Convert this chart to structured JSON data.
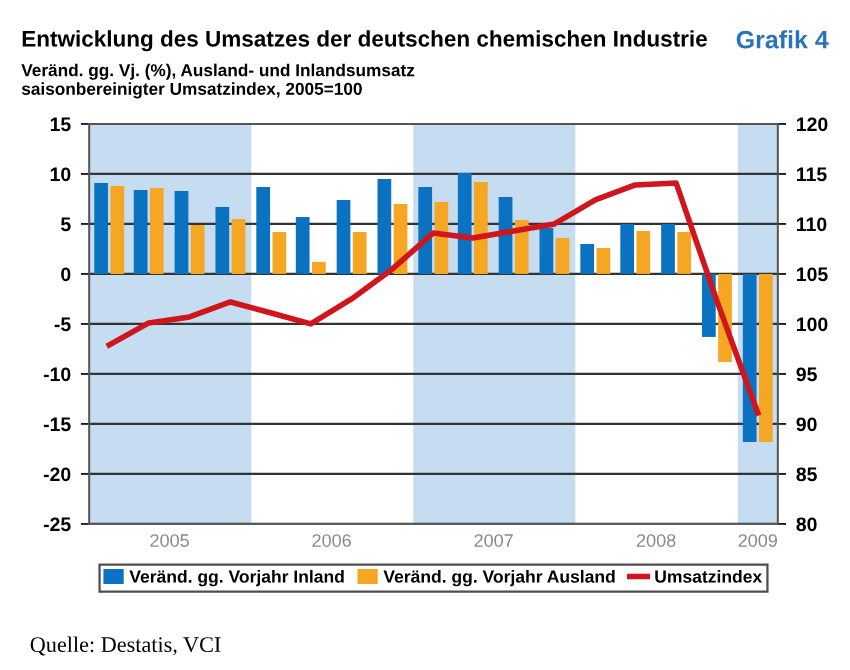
{
  "chart_data": {
    "type": "bar",
    "title": "Entwicklung des Umsatzes der deutschen chemischen Industrie",
    "subtitle": "Veränd. gg. Vj. (%), Ausland- und Inlandsumsatz\nsaisonbereinigter Umsatzindex, 2005=100",
    "annotations": [
      "Grafik 4",
      "Quelle: Destatis, VCI"
    ],
    "x": [
      "2005-02-15",
      "2005-05-15",
      "2005-08-15",
      "2005-11-15",
      "2006-02-15",
      "2006-05-15",
      "2006-08-15",
      "2006-11-15",
      "2007-02-15",
      "2007-05-15",
      "2007-08-15",
      "2007-11-15",
      "2008-02-15",
      "2008-05-15",
      "2008-08-15",
      "2008-11-15",
      "2009-02-15"
    ],
    "xlim": [
      "2005-01-01",
      "2009-04-01"
    ],
    "xticks": [
      {
        "value": "2005-07-01",
        "label": "2005"
      },
      {
        "value": "2006-07-01",
        "label": "2006"
      },
      {
        "value": "2007-07-01",
        "label": "2007"
      },
      {
        "value": "2008-07-01",
        "label": "2008"
      },
      {
        "value": "2009-02-15",
        "label": "2009"
      }
    ],
    "ylim": [
      -25,
      15
    ],
    "yticks": [
      -25,
      -20,
      -15,
      -10,
      -5,
      0,
      5,
      10,
      15
    ],
    "y2lim": [
      80,
      120
    ],
    "y2ticks": [
      80,
      85,
      90,
      95,
      100,
      105,
      110,
      115,
      120
    ],
    "grid": "y",
    "legend": "bottom",
    "bands": [
      {
        "axis": "x",
        "from": "2005-01-01",
        "to": "2006-01-01",
        "color": "#c6dcf0"
      },
      {
        "axis": "x",
        "from": "2007-01-01",
        "to": "2008-01-01",
        "color": "#c6dcf0"
      },
      {
        "axis": "x",
        "from": "2009-01-01",
        "to": "2009-04-01",
        "color": "#c6dcf0"
      }
    ],
    "series": [
      {
        "name": "Veränd. gg. Vorjahr Inland",
        "color": "#0a72c0",
        "values": [
          9.1,
          8.4,
          8.3,
          6.7,
          8.7,
          5.7,
          7.4,
          9.5,
          8.7,
          10.1,
          7.7,
          4.6,
          3.0,
          5.0,
          5.0,
          -6.3,
          -16.8
        ]
      },
      {
        "name": "Veränd. gg. Vorjahr Ausland",
        "color": "#f5a623",
        "values": [
          8.8,
          8.6,
          4.9,
          5.5,
          4.2,
          1.2,
          4.2,
          7.0,
          7.2,
          9.2,
          5.4,
          3.6,
          2.6,
          4.3,
          4.2,
          -8.8,
          -16.8
        ]
      },
      {
        "name": "Umsatzindex",
        "type": "line",
        "axis": "y2",
        "color": "#d0161c",
        "values": [
          97.9,
          100.1,
          100.7,
          102.2,
          101.1,
          100.0,
          102.5,
          105.5,
          109.1,
          108.6,
          109.3,
          110.0,
          112.4,
          113.9,
          114.1,
          102.3,
          91.1
        ]
      }
    ]
  }
}
